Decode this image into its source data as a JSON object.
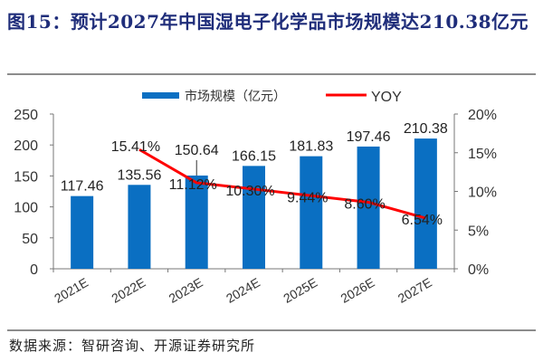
{
  "title": "图15：预计2027年中国湿电子化学品市场规模达210.38亿元",
  "source": "数据来源：智研咨询、开源证券研究所",
  "chart_data": {
    "type": "bar",
    "categories": [
      "2021E",
      "2022E",
      "2023E",
      "2024E",
      "2025E",
      "2026E",
      "2027E"
    ],
    "series": [
      {
        "name": "市场规模（亿元）",
        "type": "bar",
        "axis": "left",
        "color": "#0a6fc2",
        "values": [
          117.46,
          135.56,
          150.64,
          166.15,
          181.83,
          197.46,
          210.38
        ],
        "labels": [
          "117.46",
          "135.56",
          "150.64",
          "166.15",
          "181.83",
          "197.46",
          "210.38"
        ]
      },
      {
        "name": "YOY",
        "type": "line",
        "axis": "right",
        "color": "#ff0000",
        "values": [
          null,
          15.41,
          11.12,
          10.3,
          9.44,
          8.6,
          6.54
        ],
        "labels": [
          "",
          "15.41%",
          "11.12%",
          "10.30%",
          "9.44%",
          "8.60%",
          "6.54%"
        ]
      }
    ],
    "y_left": {
      "range": [
        0,
        250
      ],
      "ticks": [
        "0",
        "50",
        "100",
        "150",
        "200",
        "250"
      ]
    },
    "y_right": {
      "range": [
        0,
        20
      ],
      "ticks": [
        "0%",
        "5%",
        "10%",
        "15%",
        "20%"
      ]
    },
    "legend": {
      "placement": "top",
      "entries": [
        "市场规模（亿元）",
        "YOY"
      ]
    },
    "grid": false
  }
}
